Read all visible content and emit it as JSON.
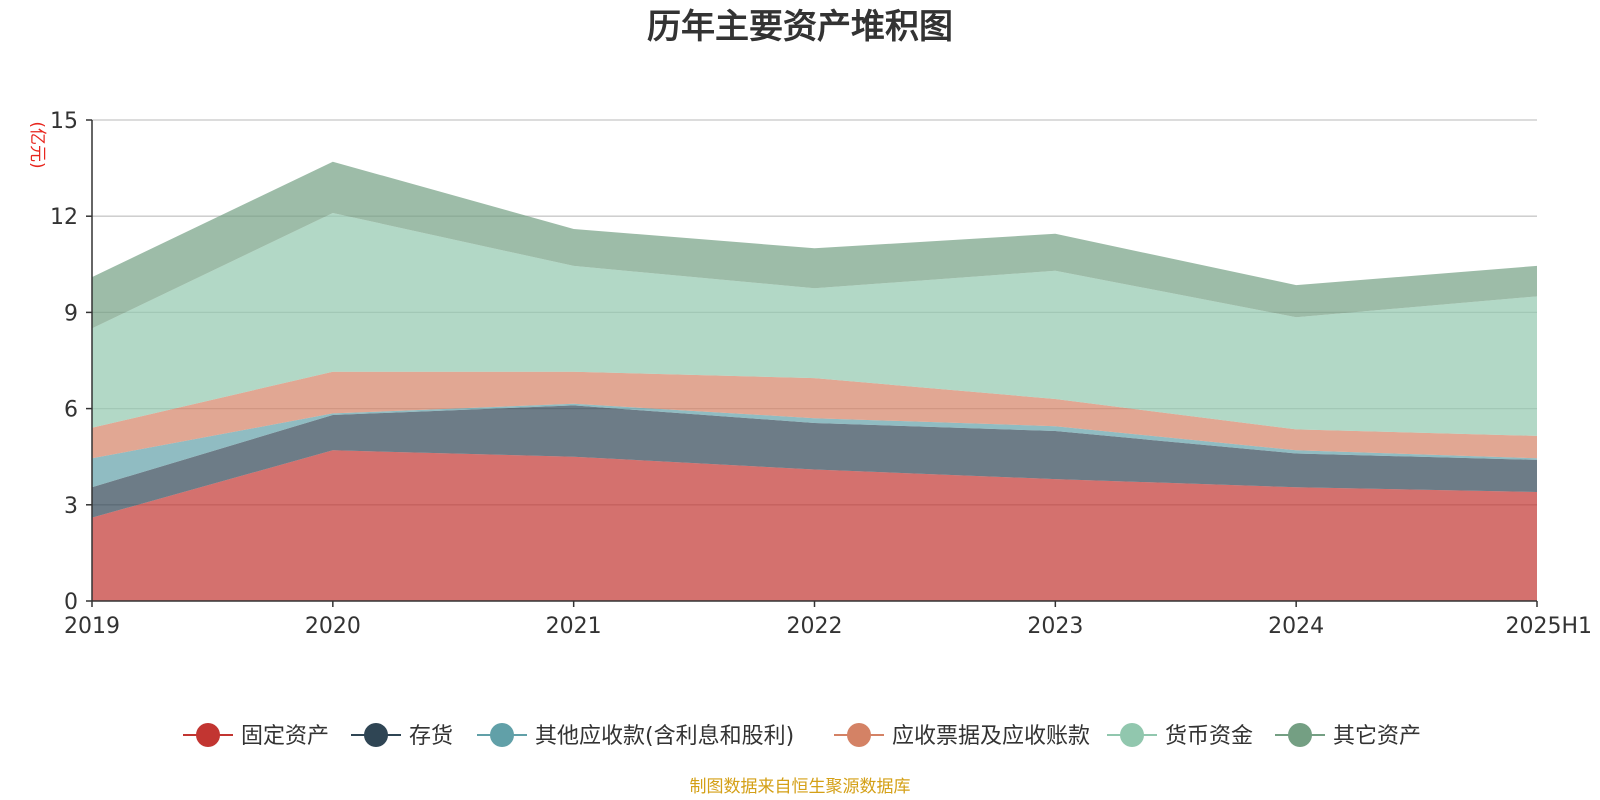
{
  "chart_data": {
    "type": "area",
    "stacked": true,
    "title": "历年主要资产堆积图",
    "unit": "(亿元)",
    "categories": [
      "2019",
      "2020",
      "2021",
      "2022",
      "2023",
      "2024",
      "2025H1"
    ],
    "ylim": [
      0,
      15
    ],
    "yticks": [
      0,
      3,
      6,
      9,
      12,
      15
    ],
    "grid": true,
    "legend_position": "bottom",
    "series": [
      {
        "name": "固定资产",
        "color": "#c23531",
        "values": [
          2.6,
          4.7,
          4.5,
          4.1,
          3.8,
          3.55,
          3.4
        ]
      },
      {
        "name": "存货",
        "color": "#2f4554",
        "values": [
          0.95,
          1.1,
          1.6,
          1.45,
          1.5,
          1.05,
          1.0
        ]
      },
      {
        "name": "其他应收款(含利息和股利)",
        "color": "#61a0a8",
        "values": [
          0.9,
          0.05,
          0.05,
          0.15,
          0.15,
          0.1,
          0.05
        ]
      },
      {
        "name": "应收票据及应收账款",
        "color": "#d48265",
        "values": [
          0.95,
          1.3,
          1.0,
          1.25,
          0.85,
          0.65,
          0.7
        ]
      },
      {
        "name": "货币资金",
        "color": "#91c7ae",
        "values": [
          3.1,
          4.95,
          3.3,
          2.8,
          4.0,
          3.5,
          4.35
        ]
      },
      {
        "name": "其它资产",
        "color": "#749f83",
        "values": [
          1.6,
          1.6,
          1.15,
          1.25,
          1.15,
          1.0,
          0.95
        ]
      }
    ]
  },
  "source_note": "制图数据来自恒生聚源数据库"
}
